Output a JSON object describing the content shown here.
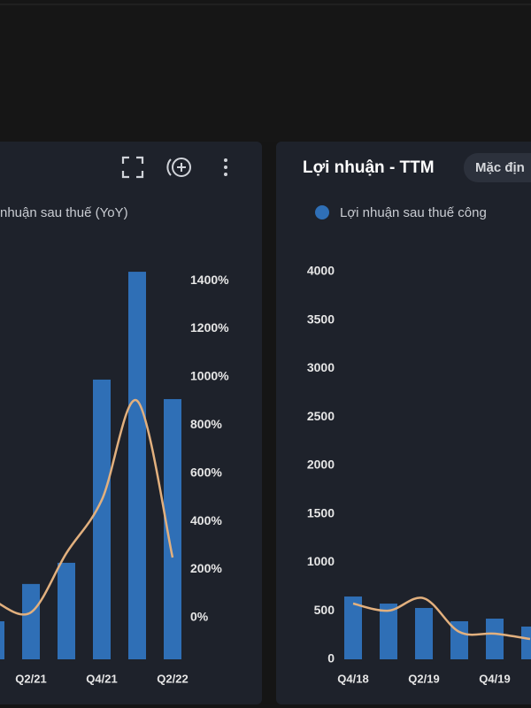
{
  "chart_data": [
    {
      "type": "combo",
      "categories": [
        null,
        "Q2/21",
        null,
        "Q4/21",
        null,
        "Q2/22"
      ],
      "y2lim": [
        -173,
        1463
      ],
      "y2ticks": [
        {
          "value": 0,
          "label": "0%"
        },
        {
          "value": 200,
          "label": "200%"
        },
        {
          "value": 400,
          "label": "400%"
        },
        {
          "value": 600,
          "label": "600%"
        },
        {
          "value": 800,
          "label": "800%"
        },
        {
          "value": 1000,
          "label": "1000%"
        },
        {
          "value": 1200,
          "label": "1200%"
        },
        {
          "value": 1400,
          "label": "1400%"
        }
      ],
      "series": [
        {
          "type": "bar",
          "axis": "y2",
          "color": "#2f6fb6",
          "values": [
            -15,
            140,
            228,
            989,
            1437,
            908
          ]
        },
        {
          "type": "line",
          "axis": "y2",
          "name": "nhuận sau thuế (YoY)",
          "color": "#e2b07e",
          "values": [
            66,
            22,
            268,
            489,
            901,
            250
          ]
        }
      ]
    },
    {
      "type": "combo",
      "title": "Lợi nhuận - TTM",
      "badge": "Mặc địn",
      "categories": [
        "Q4/18",
        null,
        "Q2/19",
        null,
        "Q4/19",
        null
      ],
      "ylim": [
        0,
        4000
      ],
      "yticks": [
        0,
        500,
        1000,
        1500,
        2000,
        2500,
        3000,
        3500,
        4000
      ],
      "series": [
        {
          "type": "bar",
          "name": "Lợi nhuận sau thuế công",
          "color": "#2f6fb6",
          "values": [
            648,
            575,
            530,
            393,
            420,
            338
          ]
        },
        {
          "type": "line",
          "color": "#e2b07e",
          "values": [
            575,
            502,
            630,
            283,
            265,
            210
          ]
        }
      ]
    }
  ]
}
